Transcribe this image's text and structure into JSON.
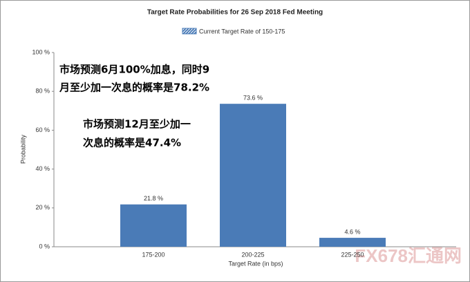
{
  "chart_data": {
    "type": "bar",
    "title": "Target Rate Probabilities for 26 Sep 2018 Fed Meeting",
    "legend": "Current Target Rate of 150-175",
    "x_label": "Target Rate (in bps)",
    "y_label": "Probability",
    "categories": [
      "175-200",
      "200-225",
      "225-250"
    ],
    "values": [
      21.8,
      73.6,
      4.6
    ],
    "value_labels": [
      "21.8 %",
      "73.6 %",
      "4.6 %"
    ],
    "color": "#4a7bb7",
    "ylim": [
      0,
      100
    ],
    "yticks": [
      {
        "value": 0,
        "label": "0 %"
      },
      {
        "value": 20,
        "label": "20 %"
      },
      {
        "value": 40,
        "label": "40 %"
      },
      {
        "value": 60,
        "label": "60 %"
      },
      {
        "value": 80,
        "label": "80 %"
      },
      {
        "value": 100,
        "label": "100 %"
      }
    ],
    "annotations": [
      "市场预测6月100%加息，同时9",
      "月至少加一次息的概率是78.2%",
      "市场预测12月至少加一",
      "次息的概率是47.4%"
    ],
    "watermark": "FX678汇通网"
  }
}
